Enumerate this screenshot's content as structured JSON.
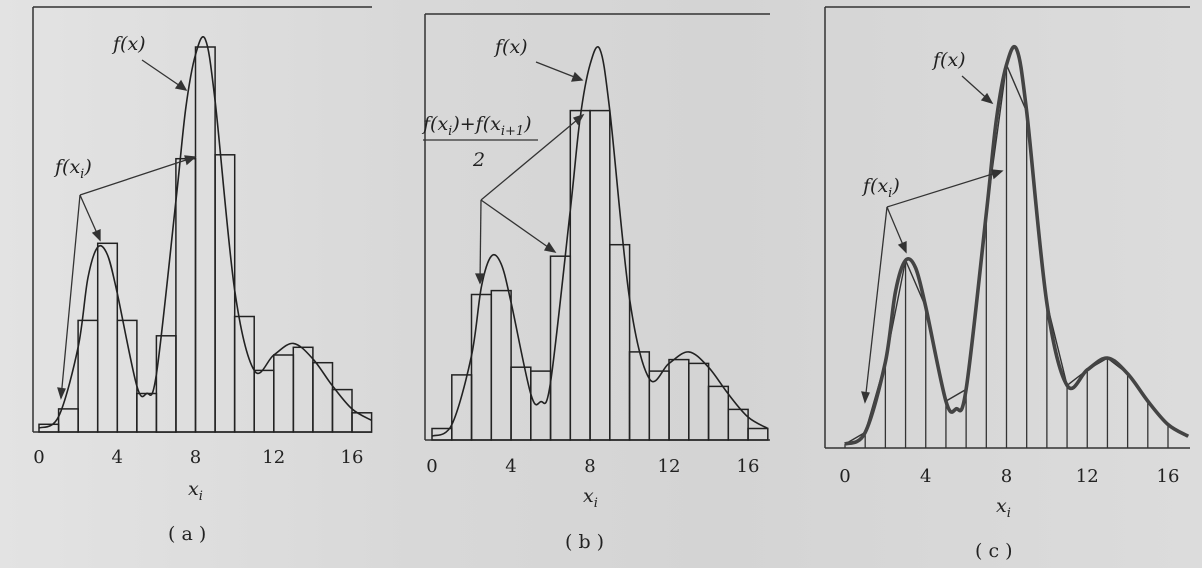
{
  "figure": {
    "panels": [
      {
        "caption": "( a )",
        "xlabel": "x",
        "xlabel_sub": "i",
        "x_ticks": [
          "0",
          "4",
          "8",
          "12",
          "16"
        ],
        "curve_label": "f(x)",
        "bar_label": "f(x",
        "bar_label_sub": "i",
        "bar_label_close": ")"
      },
      {
        "caption": "( b )",
        "xlabel": "x",
        "xlabel_sub": "i",
        "x_ticks": [
          "0",
          "4",
          "8",
          "12",
          "16"
        ],
        "curve_label": "f(x)",
        "bar_label_num": "f(x",
        "bar_label_num_sub1": "i",
        "bar_label_num_mid": ")+f(x",
        "bar_label_num_sub2": "i+1",
        "bar_label_num_close": ")",
        "bar_label_den": "2"
      },
      {
        "caption": "( c )",
        "xlabel": "x",
        "xlabel_sub": "i",
        "x_ticks": [
          "0",
          "4",
          "8",
          "12",
          "16"
        ],
        "curve_label": "f(x)",
        "bar_label": "f(x",
        "bar_label_sub": "i",
        "bar_label_close": ")"
      }
    ]
  },
  "chart_data": [
    {
      "type": "bar",
      "description_of_marks": "histogram bars of f(x_i) with overlaid curve f(x)",
      "x": [
        0,
        1,
        2,
        3,
        4,
        5,
        6,
        7,
        8,
        9,
        10,
        11,
        12,
        13,
        14,
        15,
        16
      ],
      "bar_values": [
        0.02,
        0.06,
        0.29,
        0.49,
        0.29,
        0.1,
        0.25,
        0.71,
        1.0,
        0.72,
        0.3,
        0.16,
        0.2,
        0.22,
        0.18,
        0.11,
        0.05
      ],
      "curve_x": [
        0,
        1,
        2,
        2.5,
        3,
        3.5,
        4,
        5,
        5.5,
        6,
        7,
        7.5,
        8,
        8.5,
        9,
        10,
        11,
        12,
        13,
        14,
        15,
        16,
        17
      ],
      "curve_y": [
        0.01,
        0.04,
        0.22,
        0.4,
        0.48,
        0.46,
        0.36,
        0.12,
        0.1,
        0.15,
        0.6,
        0.84,
        0.98,
        1.02,
        0.86,
        0.37,
        0.16,
        0.2,
        0.23,
        0.19,
        0.12,
        0.06,
        0.03
      ],
      "xlim": [
        -0.8,
        17
      ],
      "ylim": [
        0,
        1.02
      ],
      "xticks": [
        0,
        4,
        8,
        12,
        16
      ]
    },
    {
      "type": "bar",
      "description_of_marks": "bars of trapezoid heights (f(x_i)+f(x_{i+1}))/2 with overlaid curve f(x)",
      "x": [
        0,
        1,
        2,
        3,
        4,
        5,
        6,
        7,
        8,
        9,
        10,
        11,
        12,
        13,
        14,
        15,
        16
      ],
      "bar_values": [
        0.03,
        0.17,
        0.38,
        0.39,
        0.19,
        0.18,
        0.48,
        0.86,
        0.86,
        0.51,
        0.23,
        0.18,
        0.21,
        0.2,
        0.14,
        0.08,
        0.03
      ],
      "curve_x": [
        0,
        1,
        2,
        2.5,
        3,
        3.5,
        4,
        5,
        5.5,
        6,
        7,
        7.5,
        8,
        8.5,
        9,
        10,
        11,
        12,
        13,
        14,
        15,
        16,
        17
      ],
      "curve_y": [
        0.01,
        0.04,
        0.22,
        0.4,
        0.48,
        0.46,
        0.36,
        0.12,
        0.1,
        0.15,
        0.6,
        0.84,
        0.98,
        1.02,
        0.86,
        0.37,
        0.16,
        0.2,
        0.23,
        0.19,
        0.12,
        0.06,
        0.03
      ],
      "xlim": [
        -0.8,
        17
      ],
      "ylim": [
        0,
        1.02
      ],
      "xticks": [
        0,
        4,
        8,
        12,
        16
      ]
    },
    {
      "type": "line",
      "description_of_marks": "curve f(x) with polyline through sample points f(x_i) and vertical grid lines",
      "x": [
        0,
        1,
        2,
        3,
        4,
        5,
        6,
        7,
        8,
        9,
        10,
        11,
        12,
        13,
        14,
        15,
        16,
        17
      ],
      "sample_values": [
        0.01,
        0.04,
        0.22,
        0.48,
        0.36,
        0.12,
        0.15,
        0.6,
        0.98,
        0.86,
        0.37,
        0.16,
        0.2,
        0.23,
        0.19,
        0.12,
        0.06,
        0.03
      ],
      "curve_x": [
        0,
        1,
        2,
        2.5,
        3,
        3.5,
        4,
        5,
        5.5,
        6,
        7,
        7.5,
        8,
        8.5,
        9,
        10,
        11,
        12,
        13,
        14,
        15,
        16,
        17
      ],
      "curve_y": [
        0.01,
        0.04,
        0.22,
        0.4,
        0.48,
        0.46,
        0.36,
        0.12,
        0.1,
        0.15,
        0.6,
        0.84,
        0.98,
        1.02,
        0.86,
        0.37,
        0.16,
        0.2,
        0.23,
        0.19,
        0.12,
        0.06,
        0.03
      ],
      "xlim": [
        -0.8,
        17
      ],
      "ylim": [
        0,
        1.02
      ],
      "xticks": [
        0,
        4,
        8,
        12,
        16
      ]
    }
  ]
}
